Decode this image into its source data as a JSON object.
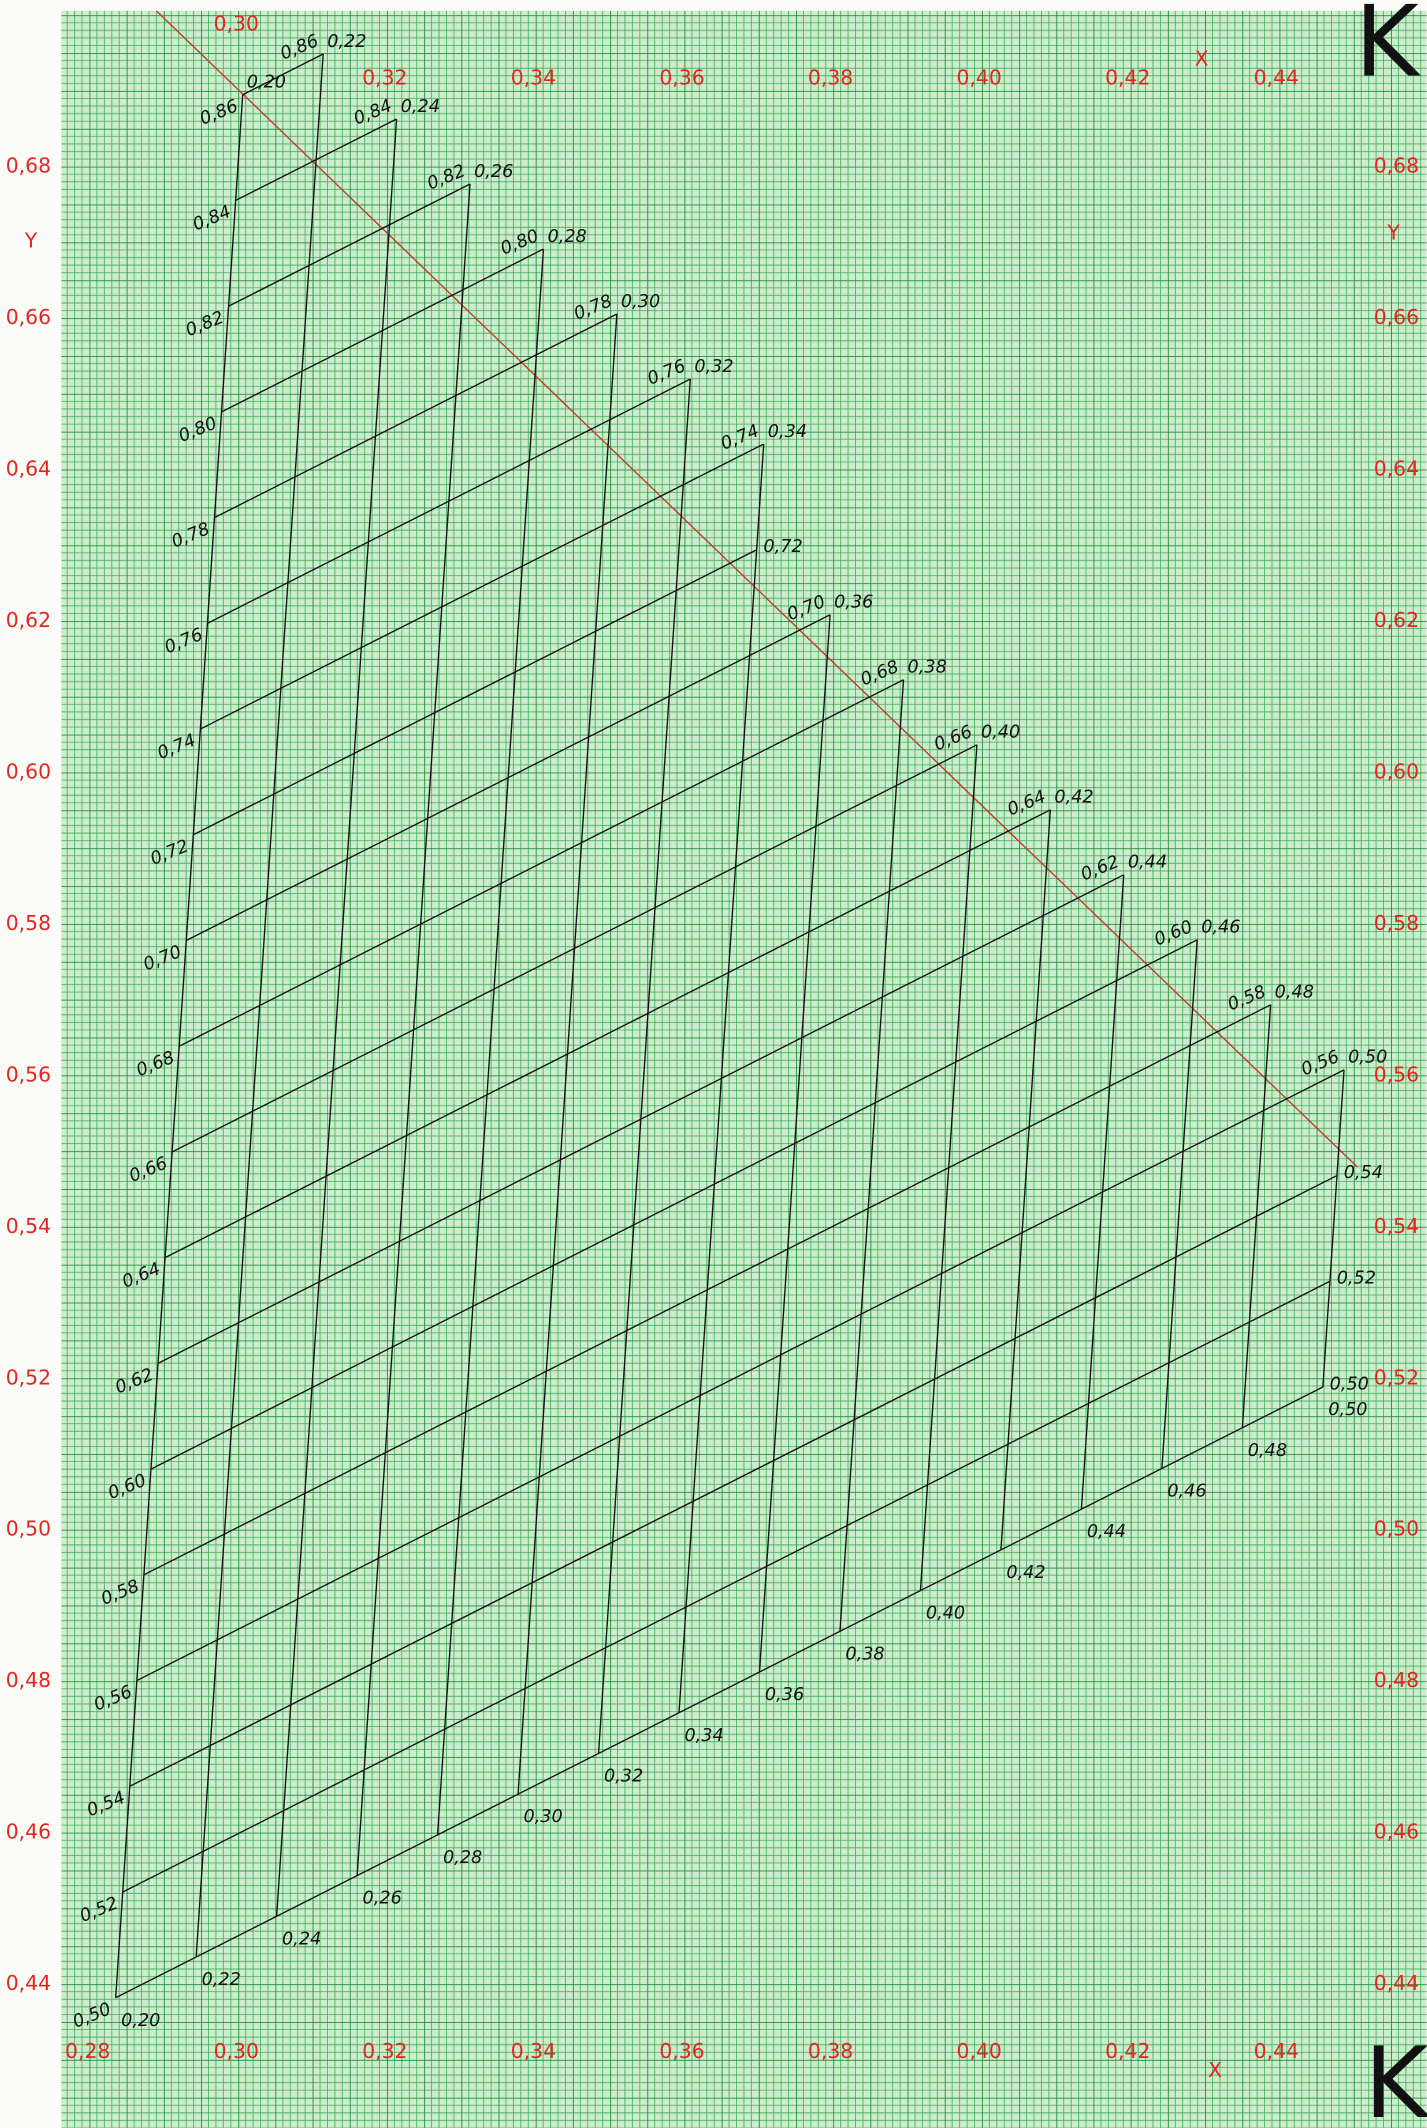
{
  "chart_data": {
    "type": "nomogram",
    "xlim": [
      0.268,
      0.46
    ],
    "ylim": [
      0.421,
      0.702
    ],
    "color": "#e3261f",
    "x_label": "X",
    "y_label": "Y",
    "corner_mark": "K",
    "xticks_top": [
      {
        "value": 0.3,
        "label": "0,30"
      },
      {
        "value": 0.32,
        "label": "0,32"
      },
      {
        "value": 0.34,
        "label": "0,34"
      },
      {
        "value": 0.36,
        "label": "0,36"
      },
      {
        "value": 0.38,
        "label": "0,38"
      },
      {
        "value": 0.4,
        "label": "0,40"
      },
      {
        "value": 0.42,
        "label": "0,42"
      },
      {
        "value": 0.44,
        "label": "0,44"
      }
    ],
    "xticks_bottom": [
      {
        "value": 0.28,
        "label": "0,28"
      },
      {
        "value": 0.3,
        "label": "0,30"
      },
      {
        "value": 0.32,
        "label": "0,32"
      },
      {
        "value": 0.34,
        "label": "0,34"
      },
      {
        "value": 0.36,
        "label": "0,36"
      },
      {
        "value": 0.38,
        "label": "0,38"
      },
      {
        "value": 0.4,
        "label": "0,40"
      },
      {
        "value": 0.42,
        "label": "0,42"
      },
      {
        "value": 0.44,
        "label": "0,44"
      }
    ],
    "yticks_left": [
      {
        "value": 0.44,
        "label": "0,44"
      },
      {
        "value": 0.46,
        "label": "0,46"
      },
      {
        "value": 0.48,
        "label": "0,48"
      },
      {
        "value": 0.5,
        "label": "0,50"
      },
      {
        "value": 0.52,
        "label": "0,52"
      },
      {
        "value": 0.54,
        "label": "0,54"
      },
      {
        "value": 0.56,
        "label": "0,56"
      },
      {
        "value": 0.58,
        "label": "0,58"
      },
      {
        "value": 0.6,
        "label": "0,60"
      },
      {
        "value": 0.62,
        "label": "0,62"
      },
      {
        "value": 0.64,
        "label": "0,64"
      },
      {
        "value": 0.66,
        "label": "0,66"
      },
      {
        "value": 0.68,
        "label": "0,68"
      }
    ],
    "yticks_right": [
      {
        "value": 0.44,
        "label": "0,44"
      },
      {
        "value": 0.46,
        "label": "0,46"
      },
      {
        "value": 0.48,
        "label": "0,48"
      },
      {
        "value": 0.5,
        "label": "0,50"
      },
      {
        "value": 0.52,
        "label": "0,52"
      },
      {
        "value": 0.54,
        "label": "0,54"
      },
      {
        "value": 0.56,
        "label": "0,56"
      },
      {
        "value": 0.58,
        "label": "0,58"
      },
      {
        "value": 0.6,
        "label": "0,60"
      },
      {
        "value": 0.62,
        "label": "0,62"
      },
      {
        "value": 0.64,
        "label": "0,64"
      },
      {
        "value": 0.66,
        "label": "0,66"
      },
      {
        "value": 0.68,
        "label": "0,68"
      }
    ],
    "nomogram": {
      "a_lines": [
        {
          "value": 0.2,
          "label": "0,20",
          "top": 0.86
        },
        {
          "value": 0.22,
          "label": "0,22",
          "top": 0.86
        },
        {
          "value": 0.24,
          "label": "0,24",
          "top": 0.84
        },
        {
          "value": 0.26,
          "label": "0,26",
          "top": 0.82
        },
        {
          "value": 0.28,
          "label": "0,28",
          "top": 0.8
        },
        {
          "value": 0.3,
          "label": "0,30",
          "top": 0.78
        },
        {
          "value": 0.32,
          "label": "0,32",
          "top": 0.76
        },
        {
          "value": 0.34,
          "label": "0,34",
          "top": 0.74
        },
        {
          "value": 0.36,
          "label": "0,36",
          "top": 0.7
        },
        {
          "value": 0.38,
          "label": "0,38",
          "top": 0.68
        },
        {
          "value": 0.4,
          "label": "0,40",
          "top": 0.66
        },
        {
          "value": 0.42,
          "label": "0,42",
          "top": 0.64
        },
        {
          "value": 0.44,
          "label": "0,44",
          "top": 0.62
        },
        {
          "value": 0.46,
          "label": "0,46",
          "top": 0.6
        },
        {
          "value": 0.48,
          "label": "0,48",
          "top": 0.58
        },
        {
          "value": 0.5,
          "label": "0,50",
          "top": 0.56
        }
      ],
      "b_lines": [
        {
          "value": 0.5,
          "label": "0,50",
          "end": 0.5
        },
        {
          "value": 0.52,
          "label": "0,52",
          "end": 0.5
        },
        {
          "value": 0.54,
          "label": "0,54",
          "end": 0.5
        },
        {
          "value": 0.56,
          "label": "0,56",
          "end": 0.5
        },
        {
          "value": 0.58,
          "label": "0,58",
          "end": 0.48
        },
        {
          "value": 0.6,
          "label": "0,60",
          "end": 0.46
        },
        {
          "value": 0.62,
          "label": "0,62",
          "end": 0.44
        },
        {
          "value": 0.64,
          "label": "0,64",
          "end": 0.42
        },
        {
          "value": 0.66,
          "label": "0,66",
          "end": 0.4
        },
        {
          "value": 0.68,
          "label": "0,68",
          "end": 0.38
        },
        {
          "value": 0.7,
          "label": "0,70",
          "end": 0.36
        },
        {
          "value": 0.72,
          "label": "0,72",
          "end": 0.34
        },
        {
          "value": 0.74,
          "label": "0,74",
          "end": 0.34
        },
        {
          "value": 0.76,
          "label": "0,76",
          "end": 0.32
        },
        {
          "value": 0.78,
          "label": "0,78",
          "end": 0.3
        },
        {
          "value": 0.8,
          "label": "0,80",
          "end": 0.28
        },
        {
          "value": 0.82,
          "label": "0,82",
          "end": 0.26
        },
        {
          "value": 0.84,
          "label": "0,84",
          "end": 0.24
        },
        {
          "value": 0.86,
          "label": "0,86",
          "end": 0.22
        }
      ]
    }
  }
}
